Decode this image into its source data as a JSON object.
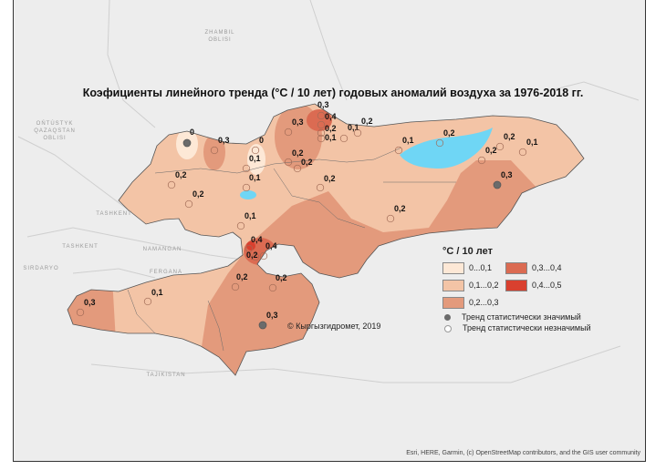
{
  "title": "Коэфициенты линейного тренда (°C / 10 лет) годовых аномалий воздуха за 1976-2018 гг.",
  "colors": {
    "c0": "#fde8d6",
    "c1": "#f3c4a6",
    "c2": "#e39a7c",
    "c3": "#db6b52",
    "c4": "#d9402f",
    "lake": "#6fd6f5",
    "background": "#ededed"
  },
  "admin_labels": [
    "ZHAMBIL",
    "OBLISI",
    "OŃTÚSTYK",
    "QAZAQSTAN",
    "OBLISI",
    "TASHKENT",
    "TASHKENT",
    "NAMANGAN",
    "FERGANA",
    "SIRDARYO",
    "TAJIKISTAN"
  ],
  "stations": [
    {
      "value": "0",
      "significant": true
    },
    {
      "value": "0,3",
      "significant": false
    },
    {
      "value": "0",
      "significant": false
    },
    {
      "value": "0,1",
      "significant": false
    },
    {
      "value": "0,1",
      "significant": false
    },
    {
      "value": "0,2",
      "significant": false
    },
    {
      "value": "0,2",
      "significant": false
    },
    {
      "value": "0,1",
      "significant": false
    },
    {
      "value": "0,4",
      "significant": false
    },
    {
      "value": "0,4",
      "significant": false
    },
    {
      "value": "0,2",
      "significant": false
    },
    {
      "value": "0,2",
      "significant": false
    },
    {
      "value": "0,2",
      "significant": false
    },
    {
      "value": "0,1",
      "significant": false
    },
    {
      "value": "0,3",
      "significant": false
    },
    {
      "value": "0,3",
      "significant": true
    },
    {
      "value": "0,3",
      "significant": false
    },
    {
      "value": "0,4",
      "significant": false
    },
    {
      "value": "0,3",
      "significant": false
    },
    {
      "value": "0,2",
      "significant": false
    },
    {
      "value": "0,1",
      "significant": false
    },
    {
      "value": "0,1",
      "significant": false
    },
    {
      "value": "0,2",
      "significant": false
    },
    {
      "value": "0,1",
      "significant": false
    },
    {
      "value": "0,2",
      "significant": false
    },
    {
      "value": "0,2",
      "significant": false
    },
    {
      "value": "0,1",
      "significant": false
    },
    {
      "value": "0,2",
      "significant": false
    },
    {
      "value": "0,3",
      "significant": true
    },
    {
      "value": "0,2",
      "significant": false
    },
    {
      "value": "0,2",
      "significant": false
    },
    {
      "value": "0,2",
      "significant": false
    },
    {
      "value": "0,2",
      "significant": false
    }
  ],
  "legend": {
    "title": "°C / 10 лет",
    "classes": [
      "0...0,1",
      "0,1...0,2",
      "0,2...0,3",
      "0,3...0,4",
      "0,4...0,5"
    ],
    "significant": "Тренд статистически значимый",
    "insignificant": "Тренд статистически незначимый"
  },
  "copyright": "© Кыргызгидромет, 2019",
  "attribution": "Esri, HERE, Garmin, (c) OpenStreetMap contributors, and the GIS user community"
}
